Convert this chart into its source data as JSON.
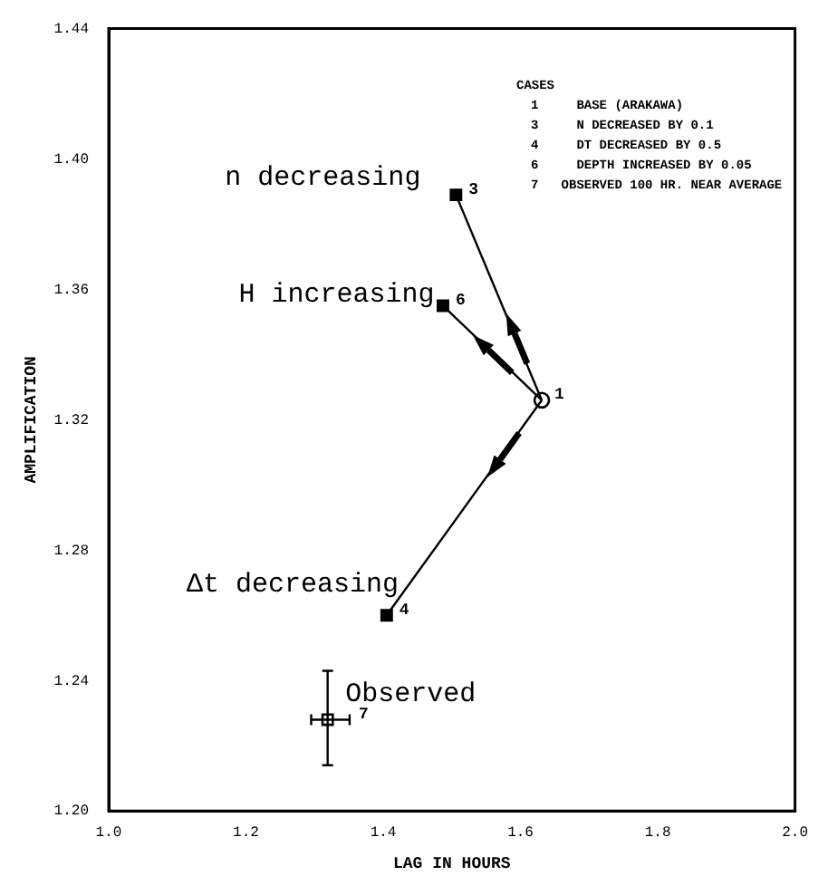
{
  "chart_data": {
    "type": "scatter",
    "xlabel": "LAG IN HOURS",
    "ylabel": "AMPLIFICATION",
    "xlim": [
      1.0,
      2.0
    ],
    "xticks": [
      {
        "value": 1.0,
        "label": "1.0"
      },
      {
        "value": 1.2,
        "label": "1.2"
      },
      {
        "value": 1.4,
        "label": "1.4"
      },
      {
        "value": 1.6,
        "label": "1.6"
      },
      {
        "value": 1.8,
        "label": "1.8"
      },
      {
        "value": 2.0,
        "label": "2.0"
      }
    ],
    "ylim": [
      1.2,
      1.44
    ],
    "yticks": [
      {
        "value": 1.2,
        "label": "1.20"
      },
      {
        "value": 1.24,
        "label": "1.24"
      },
      {
        "value": 1.28,
        "label": "1.28"
      },
      {
        "value": 1.32,
        "label": "1.32"
      },
      {
        "value": 1.36,
        "label": "1.36"
      },
      {
        "value": 1.4,
        "label": "1.40"
      },
      {
        "value": 1.44,
        "label": "1.44"
      }
    ],
    "grid": false,
    "legend": false,
    "series": [
      {
        "type": "line",
        "color": "#000000",
        "x": [
          1.631,
          1.506
        ],
        "values": [
          1.326,
          1.389
        ],
        "marker": "none"
      },
      {
        "type": "line",
        "color": "#000000",
        "x": [
          1.631,
          1.487
        ],
        "values": [
          1.326,
          1.355
        ],
        "marker": "none"
      },
      {
        "type": "line",
        "color": "#000000",
        "x": [
          1.631,
          1.405
        ],
        "values": [
          1.326,
          1.26
        ],
        "marker": "none"
      },
      {
        "type": "scatter",
        "name": "1",
        "color": "#000000",
        "x": [
          1.631
        ],
        "values": [
          1.326
        ],
        "marker": "circle"
      },
      {
        "type": "scatter",
        "name": "3",
        "color": "#000000",
        "x": [
          1.506
        ],
        "values": [
          1.389
        ],
        "marker": "square"
      },
      {
        "type": "scatter",
        "name": "6",
        "color": "#000000",
        "x": [
          1.487
        ],
        "values": [
          1.355
        ],
        "marker": "square"
      },
      {
        "type": "scatter",
        "name": "4",
        "color": "#000000",
        "x": [
          1.405
        ],
        "values": [
          1.26
        ],
        "marker": "square"
      },
      {
        "type": "scatter",
        "name": "7",
        "color": "#000000",
        "x": [
          1.319
        ],
        "values": [
          1.228
        ],
        "marker": "square",
        "errors": [
          [
            1.214,
            1.243
          ]
        ],
        "xerrors": [
          [
            1.295,
            1.351
          ]
        ]
      }
    ],
    "annotations": [
      "n decreasing",
      "H increasing",
      "Δt decreasing",
      "Observed",
      "CASES",
      "1     BASE (ARAKAWA)",
      "3     N DECREASED BY 0.1",
      "4     DT DECREASED BY 0.5",
      "6     DEPTH INCREASED BY 0.05",
      "7   OBSERVED 100 HR. NEAR AVERAGE"
    ]
  }
}
